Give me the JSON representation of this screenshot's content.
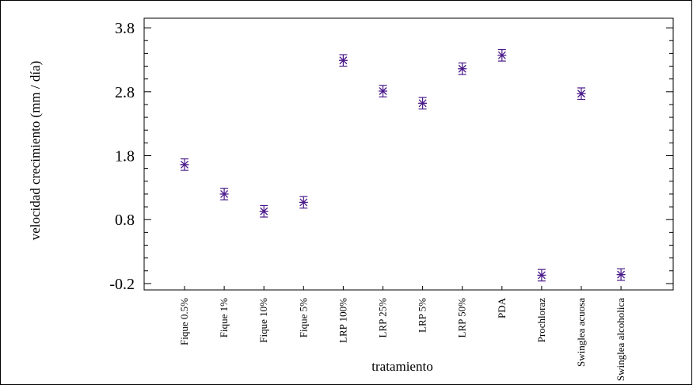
{
  "chart_data": {
    "type": "scatter",
    "xlabel": "tratamiento",
    "ylabel": "velocidad crecimiento (mm / día)",
    "categories": [
      "Fique 0.5%",
      "Fique 1%",
      "Fique 10%",
      "Fique 5%",
      "LRP 100%",
      "LRP 25%",
      "LRP 5%",
      "LRP 50%",
      "PDA",
      "Prochloraz",
      "Swinglea acuosa",
      "Swinglea alcoholica"
    ],
    "values": [
      1.66,
      1.2,
      0.93,
      1.07,
      3.29,
      2.81,
      2.62,
      3.16,
      3.37,
      -0.07,
      2.77,
      -0.06
    ],
    "error": [
      0.09,
      0.09,
      0.09,
      0.09,
      0.09,
      0.09,
      0.09,
      0.09,
      0.09,
      0.09,
      0.09,
      0.09
    ],
    "ylim": [
      -0.3,
      3.95
    ],
    "yticks": [
      "3.8",
      "2.8",
      "1.8",
      "0.8",
      "-0.2"
    ],
    "ytick_values": [
      3.8,
      2.8,
      1.8,
      0.8,
      -0.2
    ],
    "marker_color": "#4a1a8a",
    "grid": false
  }
}
